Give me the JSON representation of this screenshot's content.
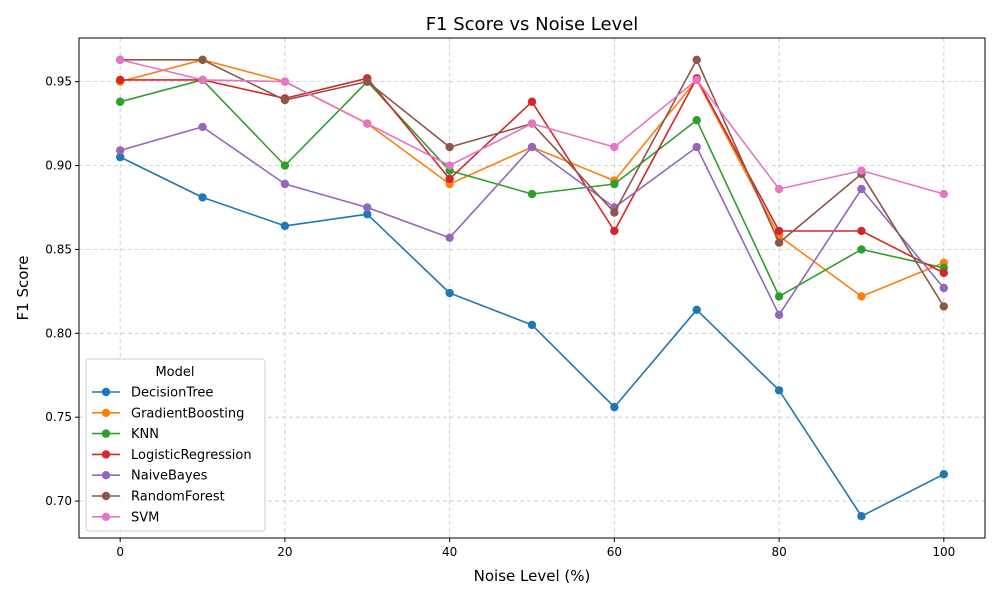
{
  "chart_data": {
    "type": "line",
    "title": "F1 Score vs Noise Level",
    "xlabel": "Noise Level (%)",
    "ylabel": "F1 Score",
    "xlim": [
      -5,
      105
    ],
    "ylim": [
      0.678,
      0.976
    ],
    "xticks": [
      0,
      20,
      40,
      60,
      80,
      100
    ],
    "xtick_labels": [
      "0",
      "20",
      "40",
      "60",
      "80",
      "100"
    ],
    "yticks": [
      0.7,
      0.75,
      0.8,
      0.85,
      0.9,
      0.95
    ],
    "ytick_labels": [
      "0.70",
      "0.75",
      "0.80",
      "0.85",
      "0.90",
      "0.95"
    ],
    "grid": true,
    "legend": {
      "title": "Model",
      "position": "lower-left"
    },
    "x": [
      0,
      10,
      20,
      30,
      40,
      50,
      60,
      70,
      80,
      90,
      100
    ],
    "series": [
      {
        "name": "DecisionTree",
        "color": "#1f77b4",
        "values": [
          0.905,
          0.881,
          0.864,
          0.871,
          0.824,
          0.805,
          0.756,
          0.814,
          0.766,
          0.691,
          0.716
        ]
      },
      {
        "name": "GradientBoosting",
        "color": "#ff7f0e",
        "values": [
          0.95,
          0.963,
          0.95,
          0.925,
          0.889,
          0.911,
          0.891,
          0.951,
          0.858,
          0.822,
          0.842
        ]
      },
      {
        "name": "KNN",
        "color": "#2ca02c",
        "values": [
          0.938,
          0.951,
          0.9,
          0.95,
          0.897,
          0.883,
          0.889,
          0.927,
          0.822,
          0.85,
          0.839
        ]
      },
      {
        "name": "LogisticRegression",
        "color": "#d62728",
        "values": [
          0.951,
          0.951,
          0.94,
          0.952,
          0.892,
          0.938,
          0.861,
          0.952,
          0.861,
          0.861,
          0.836
        ]
      },
      {
        "name": "NaiveBayes",
        "color": "#9467bd",
        "values": [
          0.909,
          0.923,
          0.889,
          0.875,
          0.857,
          0.911,
          0.875,
          0.911,
          0.811,
          0.886,
          0.827
        ]
      },
      {
        "name": "RandomForest",
        "color": "#8c564b",
        "values": [
          0.963,
          0.963,
          0.939,
          0.95,
          0.911,
          0.925,
          0.872,
          0.963,
          0.854,
          0.895,
          0.816
        ]
      },
      {
        "name": "SVM",
        "color": "#e377c2",
        "values": [
          0.963,
          0.951,
          0.95,
          0.925,
          0.9,
          0.925,
          0.911,
          0.951,
          0.886,
          0.897,
          0.883
        ]
      }
    ]
  }
}
